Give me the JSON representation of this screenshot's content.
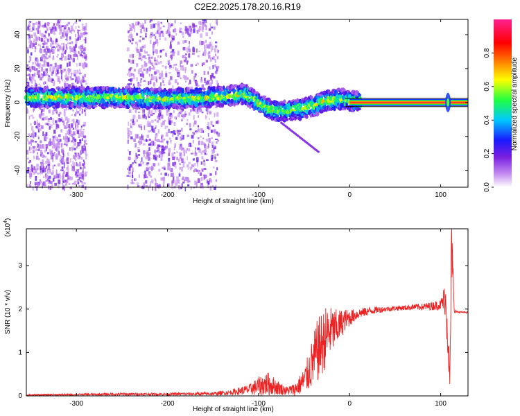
{
  "title": "C2E2.2025.178.20.16.R19",
  "colors": {
    "axis": "#000000",
    "snr_line": "#ee2222",
    "spec_base": "#8a2be2",
    "track_core": "#ff2030"
  },
  "chart_data": [
    {
      "type": "heatmap",
      "xlabel": "Height of straight line (km)",
      "ylabel": "Frequency (Hz)",
      "xlim": [
        -355,
        130
      ],
      "ylim": [
        -50,
        49
      ],
      "xticks": [
        -300,
        -200,
        -100,
        0,
        100
      ],
      "yticks": [
        -40,
        -20,
        0,
        20,
        40
      ],
      "xtick_labels": [
        "-300",
        "-200",
        "-100",
        "0",
        "100"
      ],
      "ytick_labels": [
        "-40",
        "-20",
        "0",
        "20",
        "40"
      ],
      "colorbar": {
        "label": "Normalized spectral amplitude",
        "range": [
          0,
          1
        ],
        "ticks": [
          0.0,
          0.2,
          0.4,
          0.6,
          0.8
        ],
        "tick_labels": [
          "0.0",
          "0.2",
          "0.4",
          "0.6",
          "0.8"
        ]
      },
      "track": {
        "x": [
          -355,
          -300,
          -250,
          -200,
          -150,
          -130,
          -115,
          -100,
          -85,
          -70,
          -55,
          -40,
          -25,
          -10,
          0,
          10,
          60,
          100,
          110,
          130
        ],
        "y": [
          3,
          3,
          3,
          2,
          3,
          4,
          5,
          0,
          -5,
          -5,
          -4,
          -2,
          1,
          2,
          1,
          0,
          0,
          0,
          0,
          0
        ]
      },
      "noise_regions": [
        [
          -355,
          -290
        ],
        [
          -245,
          -145
        ]
      ]
    },
    {
      "type": "line",
      "xlabel": "Height of straight line (km)",
      "ylabel": "SNR (10 * v/v)",
      "y_multiplier_label": "(x10",
      "y_multiplier_exp": "4",
      "y_multiplier_close": ")",
      "xlim": [
        -355,
        130
      ],
      "ylim": [
        0,
        3.85
      ],
      "xticks": [
        -300,
        -200,
        -100,
        0,
        100
      ],
      "yticks": [
        0,
        1,
        2,
        3
      ],
      "xtick_labels": [
        "-300",
        "-200",
        "-100",
        "0",
        "100"
      ],
      "ytick_labels": [
        "0",
        "1",
        "2",
        "3"
      ],
      "series": [
        {
          "x": [
            -355,
            -300,
            -250,
            -200,
            -150,
            -130,
            -110,
            -100,
            -90,
            -80,
            -70,
            -60,
            -50,
            -45,
            -40,
            -35,
            -30,
            -25,
            -20,
            -15,
            -10,
            -5,
            0,
            5,
            10,
            20,
            30,
            40,
            50,
            60,
            70,
            80,
            90,
            100,
            105,
            108,
            110,
            112,
            115,
            120,
            130
          ],
          "y": [
            0.02,
            0.03,
            0.04,
            0.04,
            0.05,
            0.08,
            0.15,
            0.22,
            0.28,
            0.2,
            0.12,
            0.15,
            0.35,
            0.55,
            0.8,
            1.05,
            1.2,
            1.4,
            1.5,
            1.55,
            1.65,
            1.75,
            1.8,
            1.85,
            1.9,
            1.95,
            1.98,
            2.0,
            2.02,
            2.03,
            2.05,
            2.05,
            2.07,
            2.1,
            2.25,
            1.6,
            0.2,
            3.5,
            1.95,
            1.93,
            1.92
          ],
          "spread": [
            0.02,
            0.02,
            0.03,
            0.03,
            0.04,
            0.06,
            0.12,
            0.22,
            0.28,
            0.18,
            0.1,
            0.15,
            0.3,
            0.45,
            0.6,
            0.75,
            0.75,
            0.7,
            0.55,
            0.45,
            0.35,
            0.25,
            0.2,
            0.15,
            0.12,
            0.1,
            0.08,
            0.06,
            0.06,
            0.06,
            0.07,
            0.08,
            0.1,
            0.12,
            0.4,
            0.9,
            0.2,
            0.8,
            0.04,
            0.02,
            0.02
          ]
        }
      ]
    }
  ]
}
